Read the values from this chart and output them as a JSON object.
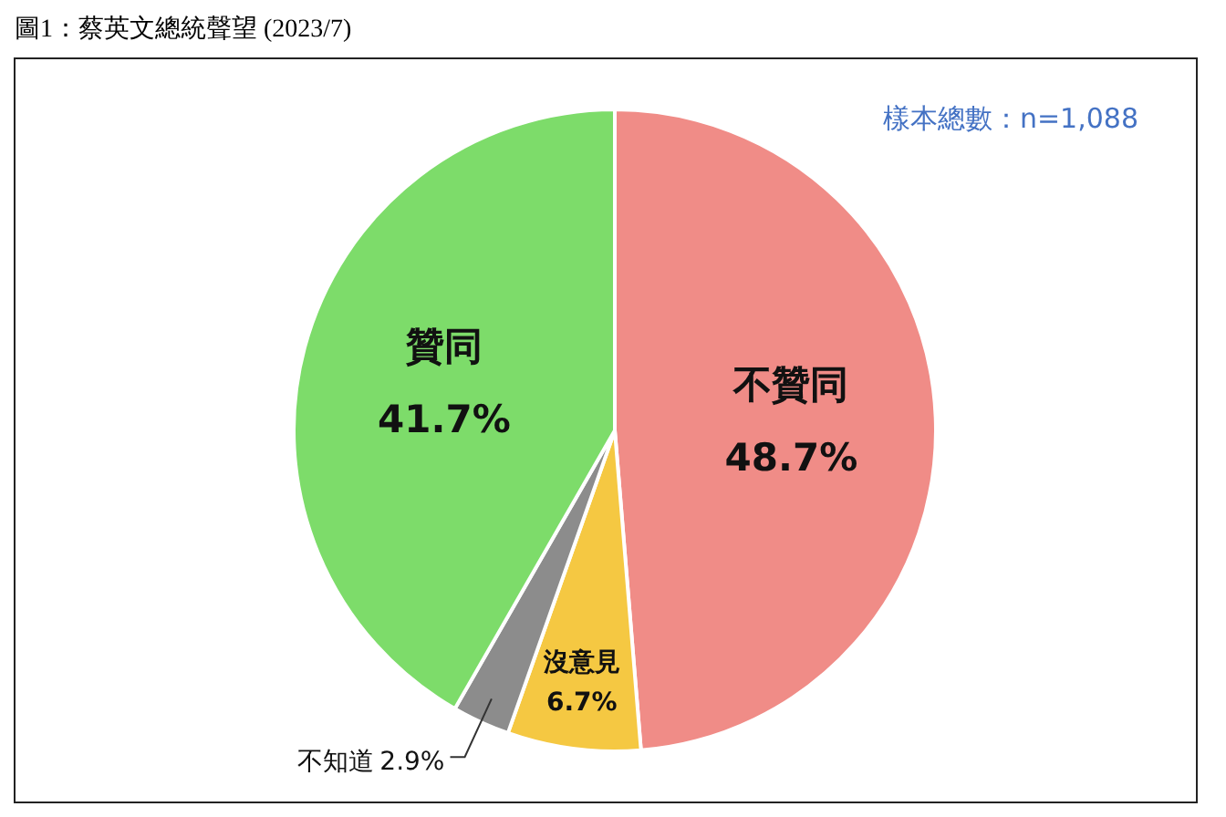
{
  "chart_data": {
    "type": "pie",
    "title": "圖1：蔡英文總統聲望 (2023/7)",
    "categories": [
      "不贊同",
      "沒意見",
      "不知道",
      "贊同"
    ],
    "values": [
      48.7,
      6.7,
      2.9,
      41.7
    ],
    "colors": [
      "#f08c87",
      "#f5c842",
      "#8c8c8c",
      "#7ddc6a"
    ],
    "value_labels": [
      "48.7%",
      "6.7%",
      "2.9%",
      "41.7%"
    ],
    "annotations": [
      "樣本總數：n=1,088"
    ]
  }
}
